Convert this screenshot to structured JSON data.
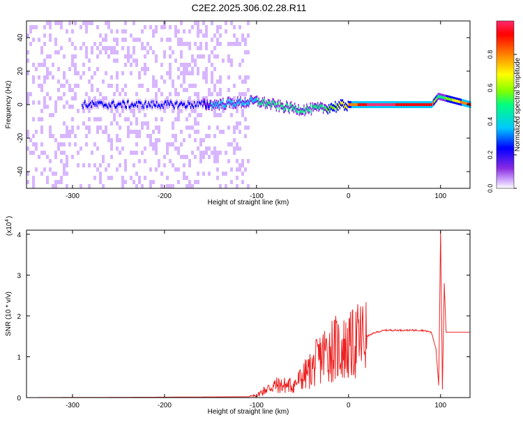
{
  "title": "C2E2.2025.306.02.28.R11",
  "chart_data": [
    {
      "type": "heatmap",
      "xlabel": "Height of straight line (km)",
      "ylabel": "Frequency (Hz)",
      "xlim": [
        -350,
        132
      ],
      "ylim": [
        -50,
        50
      ],
      "xticks": [
        -300,
        -200,
        -100,
        0,
        100
      ],
      "yticks": [
        -40,
        -20,
        0,
        20,
        40
      ],
      "colorbar": {
        "label": "Normalized spectral amplitude",
        "range": [
          0,
          1
        ],
        "ticks": [
          0.0,
          0.2,
          0.4,
          0.6,
          0.8
        ],
        "colors": [
          "#ffffff",
          "#d8b6ff",
          "#8a2be2",
          "#0000ff",
          "#00c8ff",
          "#00ff80",
          "#80ff00",
          "#ffff00",
          "#ff8000",
          "#ff0000",
          "#ff2a6e"
        ]
      },
      "noise_region_x": [
        -350,
        -108
      ],
      "ridge": [
        {
          "x": -290,
          "f": 0,
          "amp": 0.25
        },
        {
          "x": -200,
          "f": 0,
          "amp": 0.25
        },
        {
          "x": -150,
          "f": 0,
          "amp": 0.35
        },
        {
          "x": -100,
          "f": 2,
          "amp": 0.45
        },
        {
          "x": -75,
          "f": -1,
          "amp": 0.55
        },
        {
          "x": -50,
          "f": -3,
          "amp": 0.5
        },
        {
          "x": -25,
          "f": -2,
          "amp": 0.55
        },
        {
          "x": 0,
          "f": 0,
          "amp": 0.75
        },
        {
          "x": 20,
          "f": 0,
          "amp": 0.95
        },
        {
          "x": 50,
          "f": 0,
          "amp": 0.95
        },
        {
          "x": 90,
          "f": 0,
          "amp": 0.9
        },
        {
          "x": 97,
          "f": 5,
          "amp": 0.45
        },
        {
          "x": 132,
          "f": 0,
          "amp": 0.9
        }
      ]
    },
    {
      "type": "line",
      "xlabel": "Height of straight line (km)",
      "ylabel": "SNR (10 * v/v)",
      "scale_label": "(x10",
      "scale_exp": "4",
      "scale_close": ")",
      "xlim": [
        -350,
        132
      ],
      "ylim": [
        0,
        4.1
      ],
      "xticks": [
        -300,
        -200,
        -100,
        0,
        100
      ],
      "yticks": [
        0,
        1,
        2,
        3,
        4
      ],
      "series": [
        {
          "color": "#ee2222",
          "x": [
            -350,
            -200,
            -110,
            -100,
            -90,
            -80,
            -70,
            -60,
            -50,
            -40,
            -30,
            -20,
            -10,
            0,
            10,
            20,
            30,
            40,
            60,
            80,
            90,
            95,
            98,
            100,
            102,
            104,
            106,
            110,
            120,
            132
          ],
          "y": [
            0.0,
            0.01,
            0.02,
            0.05,
            0.2,
            0.3,
            0.3,
            0.3,
            0.5,
            0.7,
            1.0,
            1.2,
            1.2,
            1.2,
            1.4,
            1.5,
            1.6,
            1.65,
            1.65,
            1.65,
            1.6,
            1.2,
            0.3,
            4.1,
            0.2,
            2.8,
            1.6,
            1.6,
            1.6,
            1.6
          ]
        }
      ]
    }
  ]
}
